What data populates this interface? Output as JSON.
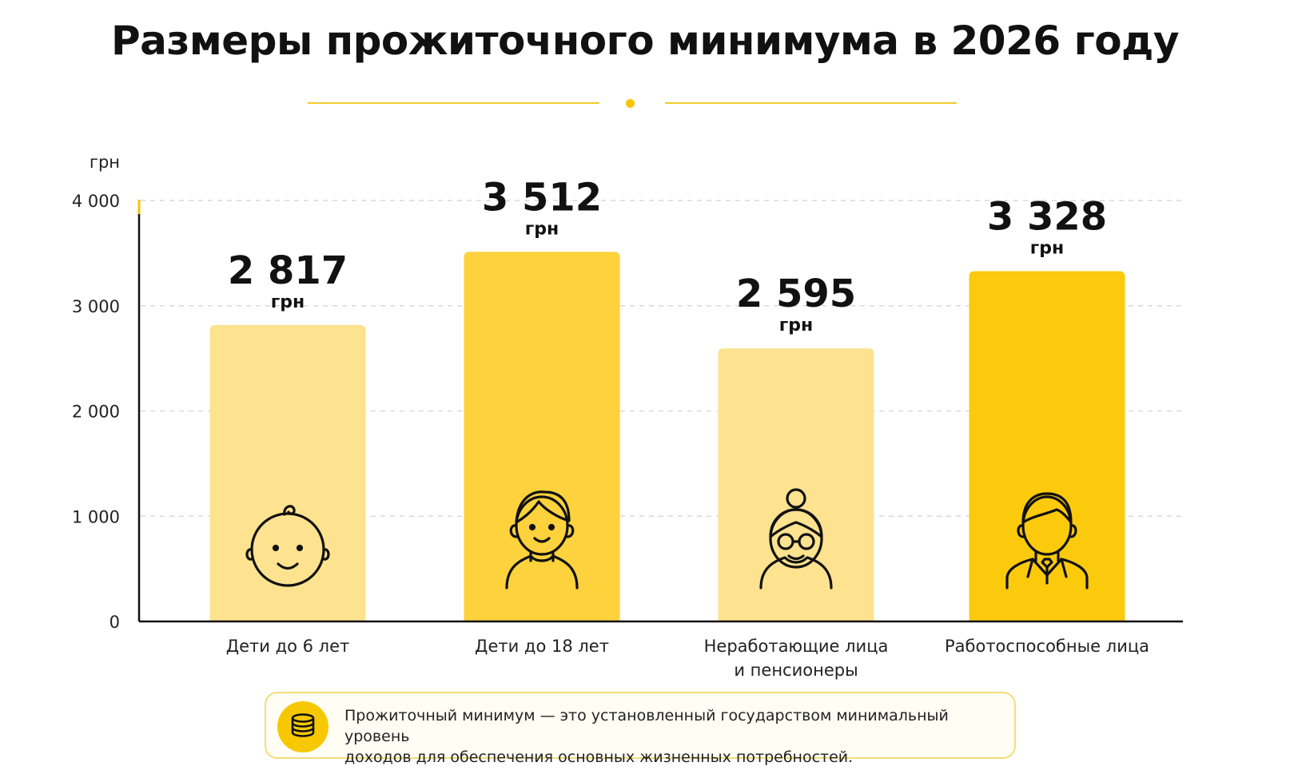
{
  "title": "Размеры прожиточного минимума в 2026 году",
  "colors": {
    "accent": "#F5C400",
    "bar_light": "#FDE28F",
    "bar_medium": "#FDD23C",
    "bar_strong": "#FCCA0C",
    "axis": "#111111",
    "grid": "#D9D9D9"
  },
  "chart_data": {
    "type": "bar",
    "title": "Размеры прожиточного минимума в 2026 году",
    "ylabel": "грн",
    "xlabel": "",
    "ylim": [
      0,
      4000
    ],
    "yticks": [
      0,
      1000,
      2000,
      3000,
      4000
    ],
    "ytick_labels": [
      "0",
      "1 000",
      "2 000",
      "3 000",
      "4 000"
    ],
    "grid": true,
    "legend": "none",
    "categories": [
      [
        "Дети до 6 лет"
      ],
      [
        "Дети до 18 лет"
      ],
      [
        "Неработающие лица",
        "и пенсионеры"
      ],
      [
        "Работоспособные лица"
      ]
    ],
    "values": [
      2817,
      3512,
      2595,
      3328
    ],
    "value_labels": [
      "2 817",
      "3 512",
      "2 595",
      "3 328"
    ],
    "value_unit": "грн",
    "bar_colors": [
      "#FDE28F",
      "#FDD23C",
      "#FDE28F",
      "#FCCA0C"
    ],
    "bar_icons": [
      "baby-face-icon",
      "boy-icon",
      "grandmother-icon",
      "businessman-icon"
    ]
  },
  "note": {
    "icon": "coins-stack-icon",
    "text_line1": "Прожиточный минимум — это установленный государством минимальный уровень",
    "text_line2": "доходов для обеспечения основных жизненных потребностей."
  }
}
